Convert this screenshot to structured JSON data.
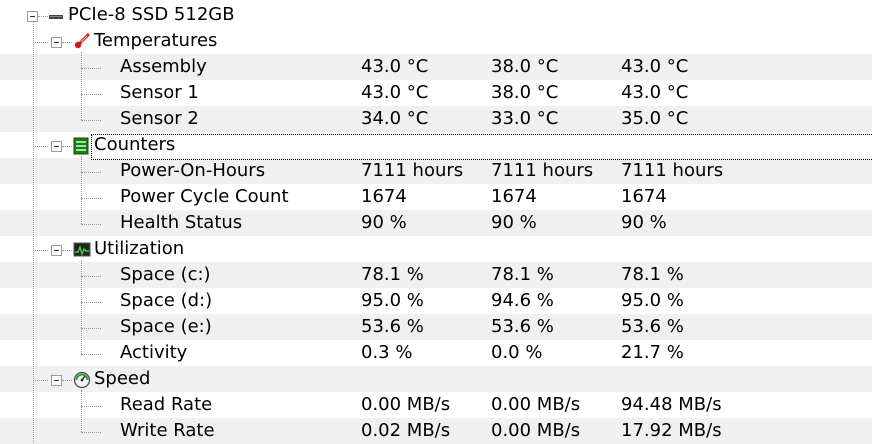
{
  "device": {
    "name": "PCIe-8 SSD 512GB",
    "icon": "drive-icon"
  },
  "groups": {
    "temperatures": {
      "label": "Temperatures",
      "icon": "thermometer-icon",
      "rows": [
        {
          "name": "Assembly",
          "v1": "43.0 °C",
          "v2": "38.0 °C",
          "v3": "43.0 °C"
        },
        {
          "name": "Sensor 1",
          "v1": "43.0 °C",
          "v2": "38.0 °C",
          "v3": "43.0 °C"
        },
        {
          "name": "Sensor 2",
          "v1": "34.0 °C",
          "v2": "33.0 °C",
          "v3": "35.0 °C"
        }
      ]
    },
    "counters": {
      "label": "Counters",
      "icon": "counter-icon",
      "rows": [
        {
          "name": "Power-On-Hours",
          "v1": "7111 hours",
          "v2": "7111 hours",
          "v3": "7111 hours"
        },
        {
          "name": "Power Cycle Count",
          "v1": "1674",
          "v2": "1674",
          "v3": "1674"
        },
        {
          "name": "Health Status",
          "v1": "90 %",
          "v2": "90 %",
          "v3": "90 %"
        }
      ]
    },
    "utilization": {
      "label": "Utilization",
      "icon": "utilization-icon",
      "rows": [
        {
          "name": "Space (c:)",
          "v1": "78.1 %",
          "v2": "78.1 %",
          "v3": "78.1 %"
        },
        {
          "name": "Space (d:)",
          "v1": "95.0 %",
          "v2": "94.6 %",
          "v3": "95.0 %"
        },
        {
          "name": "Space (e:)",
          "v1": "53.6 %",
          "v2": "53.6 %",
          "v3": "53.6 %"
        },
        {
          "name": "Activity",
          "v1": "0.3 %",
          "v2": "0.0 %",
          "v3": "21.7 %"
        }
      ]
    },
    "speed": {
      "label": "Speed",
      "icon": "speed-gauge-icon",
      "rows": [
        {
          "name": "Read Rate",
          "v1": "0.00 MB/s",
          "v2": "0.00 MB/s",
          "v3": "94.48 MB/s"
        },
        {
          "name": "Write Rate",
          "v1": "0.02 MB/s",
          "v2": "0.00 MB/s",
          "v3": "17.92 MB/s"
        }
      ]
    }
  }
}
